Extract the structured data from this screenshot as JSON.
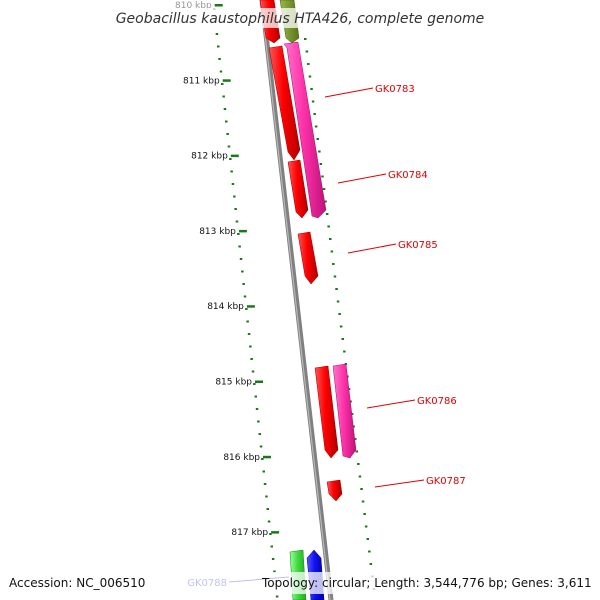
{
  "title": "Geobacillus kaustophilus HTA426, complete genome",
  "footer": {
    "accession": "Accession: NC_006510",
    "topology": "Topology: circular; Length: 3,544,776 bp; Genes: 3,611"
  },
  "ticks": [
    "810 kbp",
    "811 kbp",
    "812 kbp",
    "813 kbp",
    "814 kbp",
    "815 kbp",
    "816 kbp",
    "817 kbp"
  ],
  "genes": [
    {
      "label": "GK0783",
      "color": "#e00000"
    },
    {
      "label": "GK0784",
      "color": "#e00000"
    },
    {
      "label": "GK0785",
      "color": "#e00000"
    },
    {
      "label": "GK0786",
      "color": "#e00000"
    },
    {
      "label": "GK0787",
      "color": "#e00000"
    },
    {
      "label": "GK0788",
      "color": "#0000cc"
    }
  ],
  "colors": {
    "backbone": "#808080",
    "dots": "#1a7a1a",
    "cds_red": "#ff0000",
    "cds_pink": "#ff33aa",
    "cds_green": "#55dd55",
    "cds_blue": "#1111ee",
    "cds_olive": "#6e8c22"
  }
}
